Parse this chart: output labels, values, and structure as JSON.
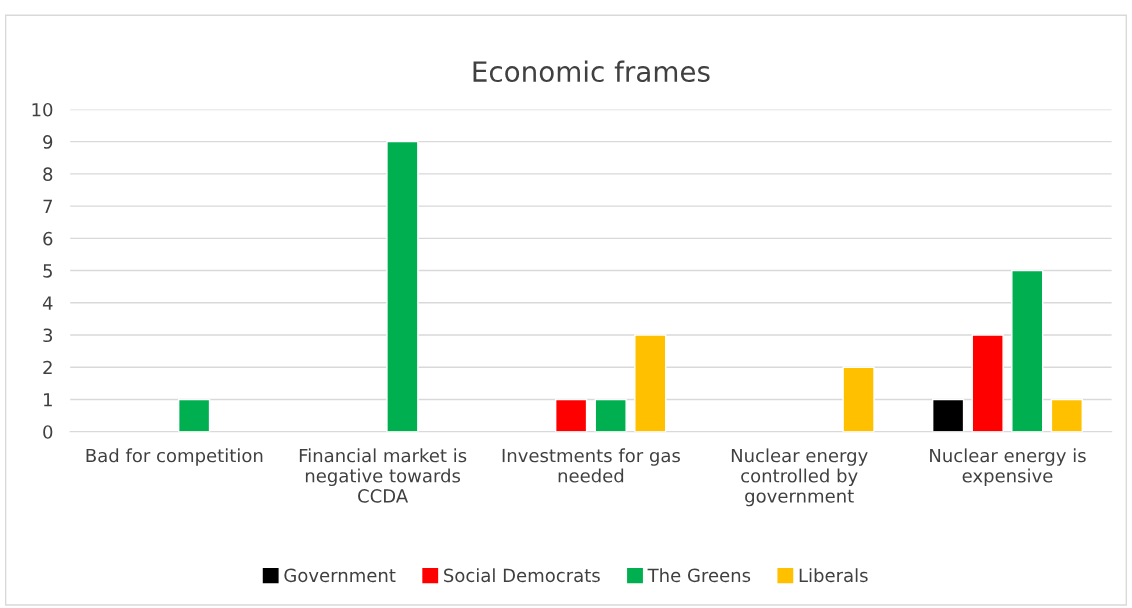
{
  "chart_data": {
    "type": "bar",
    "title": "Economic frames",
    "categories": [
      "Bad for competition",
      "Financial market is\nnegative towards\nCCDA",
      "Investments for gas\nneeded",
      "Nuclear energy\ncontrolled by\ngovernment",
      "Nuclear energy is\nexpensive"
    ],
    "series": [
      {
        "name": "Government",
        "color": "#000000",
        "values": [
          null,
          null,
          null,
          null,
          1
        ]
      },
      {
        "name": "Social Democrats",
        "color": "#ff0000",
        "values": [
          null,
          null,
          1,
          null,
          3
        ]
      },
      {
        "name": "The Greens",
        "color": "#00b050",
        "values": [
          1,
          9,
          1,
          null,
          5
        ]
      },
      {
        "name": "Liberals",
        "color": "#ffc000",
        "values": [
          null,
          null,
          3,
          2,
          1
        ]
      }
    ],
    "ylim": [
      0,
      10
    ],
    "yticks": [
      0,
      1,
      2,
      3,
      4,
      5,
      6,
      7,
      8,
      9,
      10
    ],
    "grid": "y",
    "legend": "bottom"
  }
}
